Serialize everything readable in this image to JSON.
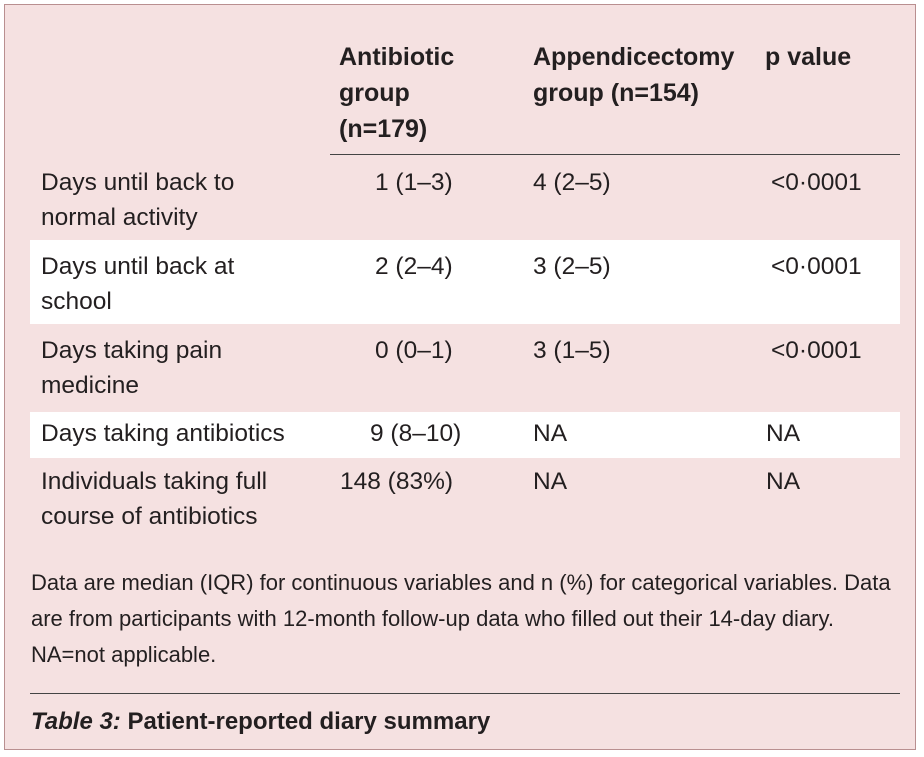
{
  "table": {
    "headers": {
      "antibiotic": "Antibiotic\ngroup\n(n=179)",
      "appendicectomy": "Appendicectomy\ngroup (n=154)",
      "pvalue": "p value"
    },
    "rows": [
      {
        "label": "Days until back to\nnormal activity",
        "antibiotic": "1 (1–3)",
        "appendicectomy": "4 (2–5)",
        "pvalue": "<0·0001"
      },
      {
        "label": "Days until back at\nschool",
        "antibiotic": "2 (2–4)",
        "appendicectomy": "3 (2–5)",
        "pvalue": "<0·0001"
      },
      {
        "label": "Days taking pain\nmedicine",
        "antibiotic": "0 (0–1)",
        "appendicectomy": "3 (1–5)",
        "pvalue": "<0·0001"
      },
      {
        "label": "Days taking antibiotics",
        "antibiotic": "9 (8–10)",
        "appendicectomy": "NA",
        "pvalue": "NA"
      },
      {
        "label": "Individuals taking full\ncourse of antibiotics",
        "antibiotic": "148 (83%)",
        "appendicectomy": "NA",
        "pvalue": "NA"
      }
    ]
  },
  "footnote": "Data are median (IQR) for continuous variables and n (%) for categorical variables. Data are from participants with 12-month follow-up data who filled out their 14-day diary. NA=not applicable.",
  "caption": {
    "label": "Table 3:",
    "title": " Patient-reported diary summary"
  },
  "colors": {
    "panel_background": "#f5e1e1",
    "panel_border": "#b98f90",
    "striped_row": "#ffffff",
    "text": "#231f20"
  }
}
